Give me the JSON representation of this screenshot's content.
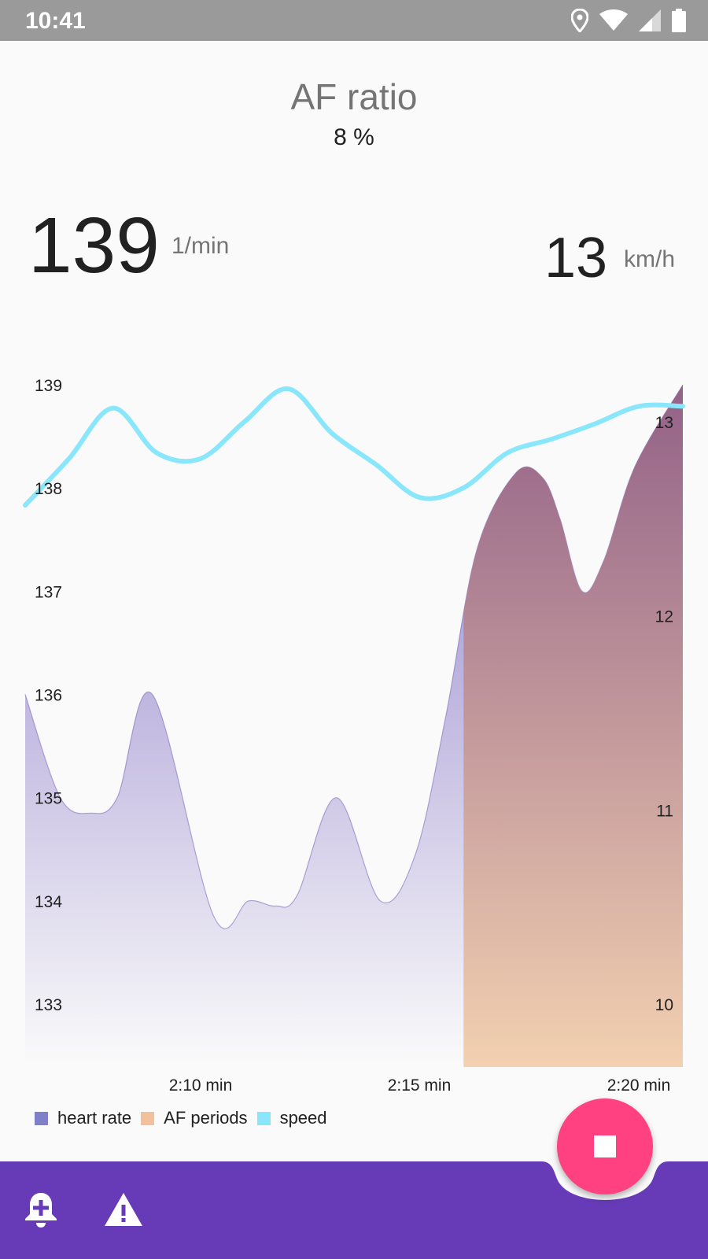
{
  "status_bar": {
    "time": "10:41",
    "icons": [
      "location-icon",
      "wifi-icon",
      "signal-icon",
      "battery-icon"
    ]
  },
  "af_ratio": {
    "title": "AF ratio",
    "value": "8 %"
  },
  "heart_rate": {
    "value": "139",
    "unit": "1/min"
  },
  "speed": {
    "value": "13",
    "unit": "km/h"
  },
  "chart_data": {
    "type": "area",
    "x_tick_labels": [
      "2:10 min",
      "2:15 min",
      "2:20 min"
    ],
    "y_left": {
      "range": [
        133,
        139
      ],
      "tick_labels": [
        "139",
        "138",
        "137",
        "136",
        "135",
        "134",
        "133"
      ]
    },
    "y_right": {
      "range": [
        10,
        13
      ],
      "tick_labels": [
        "13",
        "12",
        "11",
        "10"
      ]
    },
    "x_range": [
      0,
      15
    ],
    "grid": false,
    "legend_placement": "bottom-left",
    "series": [
      {
        "name": "heart rate",
        "axis": "left",
        "color": "#8080c8",
        "points": [
          [
            0,
            136
          ],
          [
            0.8,
            135
          ],
          [
            1.5,
            134.85
          ],
          [
            2.1,
            135
          ],
          [
            2.9,
            136
          ],
          [
            4.3,
            133.85
          ],
          [
            5.1,
            134
          ],
          [
            5.7,
            133.95
          ],
          [
            6.2,
            134.05
          ],
          [
            7.1,
            135
          ],
          [
            8.1,
            134
          ],
          [
            8.9,
            134.45
          ],
          [
            9.6,
            135.8
          ],
          [
            10.3,
            137.4
          ],
          [
            11.2,
            138.15
          ],
          [
            11.8,
            138.1
          ],
          [
            12.2,
            137.7
          ],
          [
            12.7,
            137
          ],
          [
            13.2,
            137.3
          ],
          [
            13.9,
            138.2
          ],
          [
            15,
            139
          ]
        ]
      },
      {
        "name": "AF periods",
        "axis": "left",
        "color": "#f2c09a",
        "periods": [
          [
            10,
            15
          ]
        ]
      },
      {
        "name": "speed",
        "axis": "right",
        "color": "#8ae6fa",
        "points": [
          [
            0,
            12.57
          ],
          [
            1,
            12.81
          ],
          [
            2,
            13.07
          ],
          [
            3,
            12.84
          ],
          [
            4,
            12.81
          ],
          [
            5,
            13.0
          ],
          [
            6,
            13.17
          ],
          [
            7,
            12.94
          ],
          [
            8,
            12.78
          ],
          [
            9,
            12.61
          ],
          [
            10,
            12.66
          ],
          [
            11,
            12.84
          ],
          [
            12,
            12.91
          ],
          [
            13,
            12.99
          ],
          [
            14,
            13.08
          ],
          [
            15,
            13.08
          ]
        ]
      }
    ]
  },
  "legend": {
    "items": [
      {
        "label": "heart rate",
        "color": "#8080c8"
      },
      {
        "label": "AF periods",
        "color": "#f2c09a"
      },
      {
        "label": "speed",
        "color": "#8ae6fa"
      }
    ]
  },
  "bottom_bar": {
    "color": "#673ab7",
    "icons": [
      "add-alert-icon",
      "warning-icon"
    ]
  },
  "fab": {
    "color": "#ff4081",
    "icon": "stop-icon"
  }
}
